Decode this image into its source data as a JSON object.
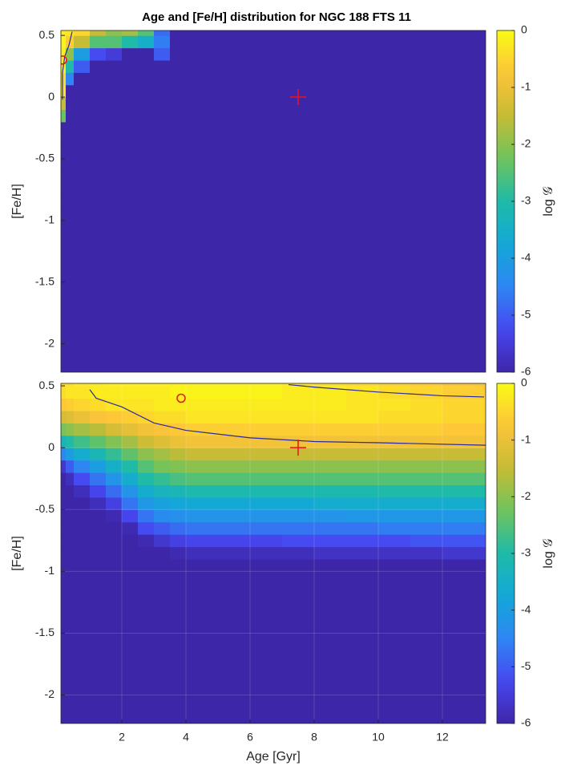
{
  "chart_data": [
    {
      "type": "heatmap",
      "title": "Age and [Fe/H] distribution for NGC 188 FTS 11",
      "ylabel": "[Fe/H]",
      "xlim": [
        0.1,
        13.35
      ],
      "ylim": [
        -2.23,
        0.54
      ],
      "yticks": [
        0.5,
        0,
        -0.5,
        -1,
        -1.5,
        -2
      ],
      "colormap": "parula",
      "colorbar": {
        "clim": [
          -6,
          0
        ],
        "ticks": [
          0,
          -1,
          -2,
          -3,
          -4,
          -5,
          -6
        ],
        "label": "log 𝒢"
      },
      "x_edges": [
        0.1,
        0.25,
        0.5,
        1,
        1.5,
        2,
        2.5,
        3,
        3.5,
        4,
        5,
        6,
        7,
        8,
        9,
        10,
        11,
        12,
        13,
        13.35
      ],
      "y_edges": [
        -2.23,
        -0.9,
        -0.8,
        -0.7,
        -0.6,
        -0.5,
        -0.4,
        -0.3,
        -0.2,
        -0.1,
        0,
        0.1,
        0.2,
        0.3,
        0.4,
        0.5,
        0.54
      ],
      "z": [
        [
          -6,
          -6,
          -6,
          -6,
          -6,
          -6,
          -6,
          -6,
          -2.3,
          -1.5,
          -0.3,
          -0.4,
          -0.2,
          -0.2,
          -0.1,
          -0.2
        ],
        [
          -6,
          -6,
          -6,
          -6,
          -6,
          -6,
          -6,
          -6,
          -6,
          -6,
          -6,
          -4.5,
          -3,
          -2,
          -0.6,
          -0.3
        ],
        [
          -6,
          -6,
          -6,
          -6,
          -6,
          -6,
          -6,
          -6,
          -6,
          -6,
          -6,
          -6,
          -5,
          -4,
          -1.5,
          -0.5
        ],
        [
          -6,
          -6,
          -6,
          -6,
          -6,
          -6,
          -6,
          -6,
          -6,
          -6,
          -6,
          -6,
          -6,
          -5.2,
          -2.5,
          -1.5
        ],
        [
          -6,
          -6,
          -6,
          -6,
          -6,
          -6,
          -6,
          -6,
          -6,
          -6,
          -6,
          -6,
          -6,
          -5.5,
          -2.5,
          -2
        ],
        [
          -6,
          -6,
          -6,
          -6,
          -6,
          -6,
          -6,
          -6,
          -6,
          -6,
          -6,
          -6,
          -6,
          -6,
          -3,
          -1.8
        ],
        [
          -6,
          -6,
          -6,
          -6,
          -6,
          -6,
          -6,
          -6,
          -6,
          -6,
          -6,
          -6,
          -6,
          -6,
          -3.5,
          -2.5
        ],
        [
          -6,
          -6,
          -6,
          -6,
          -6,
          -6,
          -6,
          -6,
          -6,
          -6,
          -6,
          -6,
          -6,
          -5,
          -4.6,
          -4.8
        ],
        [
          -6,
          -6,
          -6,
          -6,
          -6,
          -6,
          -6,
          -6,
          -6,
          -6,
          -6,
          -6,
          -6,
          -6,
          -6,
          -6
        ],
        [
          -6,
          -6,
          -6,
          -6,
          -6,
          -6,
          -6,
          -6,
          -6,
          -6,
          -6,
          -6,
          -6,
          -6,
          -6,
          -6
        ],
        [
          -6,
          -6,
          -6,
          -6,
          -6,
          -6,
          -6,
          -6,
          -6,
          -6,
          -6,
          -6,
          -6,
          -6,
          -6,
          -6
        ],
        [
          -6,
          -6,
          -6,
          -6,
          -6,
          -6,
          -6,
          -6,
          -6,
          -6,
          -6,
          -6,
          -6,
          -6,
          -6,
          -6
        ],
        [
          -6,
          -6,
          -6,
          -6,
          -6,
          -6,
          -6,
          -6,
          -6,
          -6,
          -6,
          -6,
          -6,
          -6,
          -6,
          -6
        ],
        [
          -6,
          -6,
          -6,
          -6,
          -6,
          -6,
          -6,
          -6,
          -6,
          -6,
          -6,
          -6,
          -6,
          -6,
          -6,
          -6
        ],
        [
          -6,
          -6,
          -6,
          -6,
          -6,
          -6,
          -6,
          -6,
          -6,
          -6,
          -6,
          -6,
          -6,
          -6,
          -6,
          -6
        ],
        [
          -6,
          -6,
          -6,
          -6,
          -6,
          -6,
          -6,
          -6,
          -6,
          -6,
          -6,
          -6,
          -6,
          -6,
          -6,
          -6
        ],
        [
          -6,
          -6,
          -6,
          -6,
          -6,
          -6,
          -6,
          -6,
          -6,
          -6,
          -6,
          -6,
          -6,
          -6,
          -6,
          -6
        ],
        [
          -6,
          -6,
          -6,
          -6,
          -6,
          -6,
          -6,
          -6,
          -6,
          -6,
          -6,
          -6,
          -6,
          -6,
          -6,
          -6
        ],
        [
          -6,
          -6,
          -6,
          -6,
          -6,
          -6,
          -6,
          -6,
          -6,
          -6,
          -6,
          -6,
          -6,
          -6,
          -6,
          -6
        ]
      ],
      "contours": [
        {
          "color": "#2a2a9a",
          "x": [
            0.45,
            0.35,
            0.22,
            0.15,
            0.15
          ],
          "y": [
            0.53,
            0.42,
            0.33,
            0.2,
            -0.02
          ]
        }
      ],
      "markers": [
        {
          "type": "circle",
          "x": 0.15,
          "y": 0.3,
          "color": "#e8141a"
        },
        {
          "type": "plus",
          "x": 7.5,
          "y": 0,
          "color": "#e8141a"
        }
      ]
    },
    {
      "type": "heatmap",
      "ylabel": "[Fe/H]",
      "xlabel": "Age [Gyr]",
      "xlim": [
        0.1,
        13.35
      ],
      "ylim": [
        -2.23,
        0.52
      ],
      "xticks": [
        2,
        4,
        6,
        8,
        10,
        12
      ],
      "yticks": [
        0.5,
        0,
        -0.5,
        -1,
        -1.5,
        -2
      ],
      "grid": true,
      "colormap": "parula",
      "colorbar": {
        "clim": [
          -6,
          0
        ],
        "ticks": [
          0,
          -1,
          -2,
          -3,
          -4,
          -5,
          -6
        ],
        "label": "log 𝒢"
      },
      "x_edges": [
        0.1,
        0.25,
        0.5,
        1,
        1.5,
        2,
        2.5,
        3,
        3.5,
        4,
        5,
        6,
        7,
        8,
        9,
        10,
        11,
        12,
        13,
        13.35
      ],
      "y_edges": [
        -2.23,
        -0.9,
        -0.8,
        -0.7,
        -0.6,
        -0.5,
        -0.4,
        -0.3,
        -0.2,
        -0.1,
        0,
        0.1,
        0.2,
        0.3,
        0.4,
        0.5,
        0.52
      ],
      "z": [
        [
          -6,
          -6,
          -6,
          -6,
          -6,
          -6,
          -6,
          -6,
          -5.6,
          -4.5,
          -3.3,
          -2.2,
          -1.3,
          -0.7,
          -0.4,
          -0.5
        ],
        [
          -6,
          -6,
          -6,
          -6,
          -6,
          -6,
          -6,
          -5.8,
          -5,
          -4,
          -3,
          -2,
          -1.2,
          -0.6,
          -0.3,
          -0.4
        ],
        [
          -6,
          -6,
          -6,
          -6,
          -6,
          -6,
          -5.8,
          -5.2,
          -4.5,
          -3.6,
          -2.7,
          -1.8,
          -1,
          -0.5,
          -0.3,
          -0.3
        ],
        [
          -6,
          -6,
          -6,
          -6,
          -6,
          -5.8,
          -5.3,
          -4.7,
          -4,
          -3.2,
          -2.4,
          -1.6,
          -0.8,
          -0.4,
          -0.2,
          -0.3
        ],
        [
          -6,
          -6,
          -6,
          -6,
          -5.9,
          -5.4,
          -4.8,
          -4.2,
          -3.5,
          -2.8,
          -2.1,
          -1.3,
          -0.7,
          -0.3,
          -0.2,
          -0.2
        ],
        [
          -6,
          -6,
          -6,
          -5.9,
          -5.3,
          -4.7,
          -4.2,
          -3.6,
          -3,
          -2.4,
          -1.8,
          -1.1,
          -0.6,
          -0.3,
          -0.2,
          -0.2
        ],
        [
          -6,
          -6,
          -5.9,
          -5.2,
          -4.7,
          -4.1,
          -3.6,
          -3,
          -2.5,
          -2,
          -1.4,
          -0.9,
          -0.5,
          -0.3,
          -0.2,
          -0.2
        ],
        [
          -6,
          -6,
          -5.6,
          -5,
          -4.4,
          -3.9,
          -3.3,
          -2.8,
          -2.2,
          -1.8,
          -1.2,
          -0.8,
          -0.4,
          -0.2,
          -0.2,
          -0.2
        ],
        [
          -6,
          -5.9,
          -5.4,
          -4.8,
          -4.3,
          -3.8,
          -3.2,
          -2.6,
          -2.1,
          -1.6,
          -1,
          -0.7,
          -0.4,
          -0.2,
          -0.1,
          -0.2
        ],
        [
          -6,
          -5.8,
          -5.3,
          -4.7,
          -4.2,
          -3.7,
          -3.1,
          -2.5,
          -2,
          -1.5,
          -0.9,
          -0.6,
          -0.3,
          -0.2,
          -0.1,
          -0.2
        ],
        [
          -6,
          -5.8,
          -5.3,
          -4.7,
          -4.2,
          -3.7,
          -3.1,
          -2.5,
          -2,
          -1.5,
          -0.9,
          -0.6,
          -0.3,
          -0.2,
          -0.1,
          -0.2
        ],
        [
          -6,
          -5.8,
          -5.3,
          -4.7,
          -4.2,
          -3.7,
          -3.1,
          -2.5,
          -2,
          -1.5,
          -0.9,
          -0.6,
          -0.3,
          -0.2,
          -0.1,
          -0.2
        ],
        [
          -6,
          -5.8,
          -5.2,
          -4.7,
          -4.2,
          -3.7,
          -3.1,
          -2.5,
          -2,
          -1.5,
          -0.9,
          -0.6,
          -0.3,
          -0.2,
          -0.2,
          -0.3
        ],
        [
          -6,
          -5.7,
          -5.2,
          -4.7,
          -4.2,
          -3.6,
          -3.1,
          -2.5,
          -2,
          -1.5,
          -0.9,
          -0.6,
          -0.3,
          -0.2,
          -0.2,
          -0.4
        ],
        [
          -6,
          -5.7,
          -5.2,
          -4.7,
          -4.1,
          -3.6,
          -3.1,
          -2.5,
          -2,
          -1.5,
          -0.9,
          -0.6,
          -0.3,
          -0.3,
          -0.3,
          -0.5
        ],
        [
          -6,
          -5.7,
          -5.2,
          -4.6,
          -4.1,
          -3.6,
          -3,
          -2.5,
          -2,
          -1.5,
          -0.9,
          -0.6,
          -0.4,
          -0.3,
          -0.4,
          -0.6
        ],
        [
          -6,
          -5.7,
          -5.1,
          -4.6,
          -4.1,
          -3.6,
          -3,
          -2.5,
          -2,
          -1.5,
          -0.9,
          -0.6,
          -0.4,
          -0.4,
          -0.5,
          -0.7
        ],
        [
          -6,
          -5.6,
          -5.1,
          -4.6,
          -4.1,
          -3.6,
          -3,
          -2.5,
          -2,
          -1.5,
          -0.9,
          -0.7,
          -0.5,
          -0.5,
          -0.6,
          -0.8
        ],
        [
          -6,
          -5.6,
          -5.1,
          -4.6,
          -4.1,
          -3.6,
          -3,
          -2.5,
          -2,
          -1.5,
          -0.9,
          -0.7,
          -0.5,
          -0.5,
          -0.6,
          -0.9
        ]
      ],
      "contours": [
        {
          "color": "#2a2a9a",
          "x": [
            1,
            1.2,
            2,
            3,
            4,
            6,
            8,
            10,
            13.35
          ],
          "y": [
            0.47,
            0.4,
            0.33,
            0.2,
            0.14,
            0.08,
            0.05,
            0.04,
            0.02
          ]
        },
        {
          "color": "#2a2a9a",
          "x": [
            7.2,
            8,
            10,
            12,
            13.3
          ],
          "y": [
            0.51,
            0.49,
            0.45,
            0.42,
            0.41
          ]
        }
      ],
      "markers": [
        {
          "type": "circle",
          "x": 3.85,
          "y": 0.4,
          "color": "#e8141a"
        },
        {
          "type": "plus",
          "x": 7.5,
          "y": 0,
          "color": "#e8141a"
        }
      ]
    }
  ]
}
